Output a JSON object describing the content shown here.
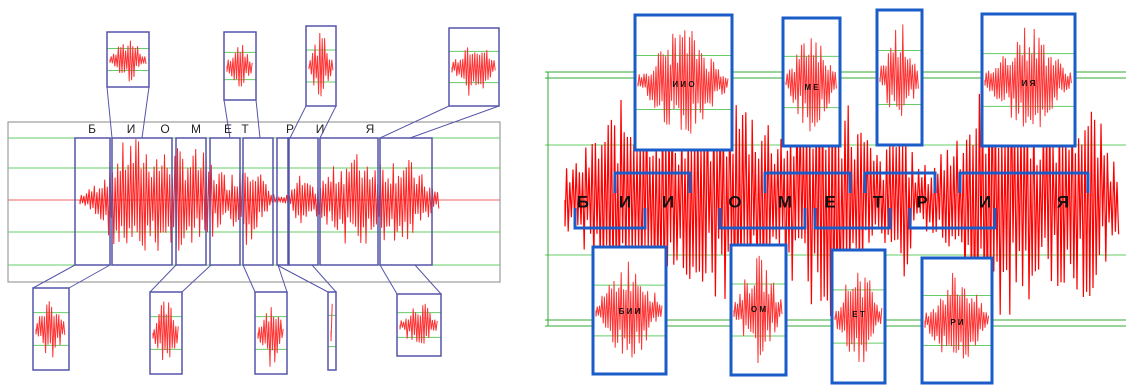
{
  "left_panel": {
    "letters": [
      "Б",
      "И",
      "О",
      "М",
      "Е",
      "Т",
      "Р",
      "И",
      "Я"
    ]
  },
  "right_panel": {
    "letters": [
      "Б",
      "И",
      "И",
      "О",
      "М",
      "Е",
      "Т",
      "Р",
      "И",
      "Я"
    ],
    "top_boxes": [
      {
        "label": "И И О"
      },
      {
        "label": "М Е"
      },
      {
        "label": "И Я"
      }
    ],
    "bottom_boxes": [
      {
        "label": "Б И И"
      },
      {
        "label": "О М"
      },
      {
        "label": "Е Т"
      },
      {
        "label": "Р И"
      }
    ]
  }
}
